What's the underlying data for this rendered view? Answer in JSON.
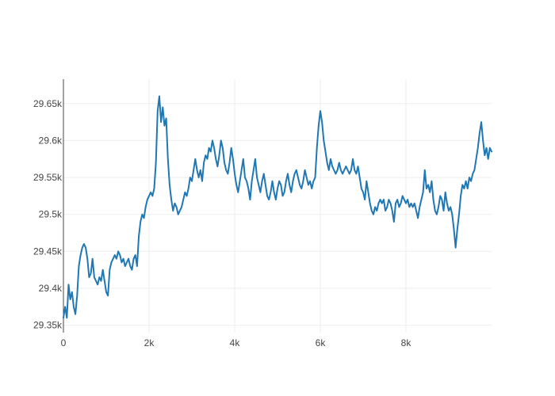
{
  "chart_data": {
    "type": "line",
    "title": "",
    "xlabel": "",
    "ylabel": "",
    "xlim": [
      0,
      10000
    ],
    "ylim": [
      29340,
      29683
    ],
    "grid": true,
    "legend": "none",
    "x_ticks": [
      {
        "value": 0,
        "label": "0"
      },
      {
        "value": 2000,
        "label": "2k"
      },
      {
        "value": 4000,
        "label": "4k"
      },
      {
        "value": 6000,
        "label": "6k"
      },
      {
        "value": 8000,
        "label": "8k"
      }
    ],
    "y_ticks": [
      {
        "value": 29350,
        "label": "29.35k"
      },
      {
        "value": 29400,
        "label": "29.4k"
      },
      {
        "value": 29450,
        "label": "29.45k"
      },
      {
        "value": 29500,
        "label": "29.5k"
      },
      {
        "value": 29550,
        "label": "29.55k"
      },
      {
        "value": 29600,
        "label": "29.6k"
      },
      {
        "value": 29650,
        "label": "29.65k"
      }
    ],
    "series": [
      {
        "color": "#1f77b4",
        "points": [
          [
            0,
            29360
          ],
          [
            40,
            29375
          ],
          [
            80,
            29360
          ],
          [
            120,
            29405
          ],
          [
            160,
            29385
          ],
          [
            200,
            29395
          ],
          [
            240,
            29375
          ],
          [
            280,
            29365
          ],
          [
            320,
            29390
          ],
          [
            360,
            29430
          ],
          [
            400,
            29445
          ],
          [
            440,
            29455
          ],
          [
            480,
            29460
          ],
          [
            520,
            29455
          ],
          [
            560,
            29440
          ],
          [
            600,
            29415
          ],
          [
            640,
            29420
          ],
          [
            680,
            29440
          ],
          [
            720,
            29415
          ],
          [
            760,
            29410
          ],
          [
            800,
            29405
          ],
          [
            840,
            29415
          ],
          [
            880,
            29410
          ],
          [
            920,
            29425
          ],
          [
            960,
            29410
          ],
          [
            1000,
            29395
          ],
          [
            1040,
            29390
          ],
          [
            1080,
            29425
          ],
          [
            1120,
            29435
          ],
          [
            1160,
            29440
          ],
          [
            1200,
            29445
          ],
          [
            1240,
            29440
          ],
          [
            1280,
            29450
          ],
          [
            1320,
            29445
          ],
          [
            1360,
            29435
          ],
          [
            1400,
            29440
          ],
          [
            1440,
            29430
          ],
          [
            1480,
            29435
          ],
          [
            1520,
            29440
          ],
          [
            1560,
            29430
          ],
          [
            1600,
            29425
          ],
          [
            1640,
            29440
          ],
          [
            1680,
            29445
          ],
          [
            1720,
            29430
          ],
          [
            1760,
            29470
          ],
          [
            1800,
            29490
          ],
          [
            1840,
            29500
          ],
          [
            1880,
            29495
          ],
          [
            1920,
            29510
          ],
          [
            1960,
            29520
          ],
          [
            2000,
            29525
          ],
          [
            2040,
            29530
          ],
          [
            2080,
            29525
          ],
          [
            2120,
            29535
          ],
          [
            2160,
            29570
          ],
          [
            2200,
            29640
          ],
          [
            2240,
            29660
          ],
          [
            2280,
            29625
          ],
          [
            2320,
            29645
          ],
          [
            2360,
            29620
          ],
          [
            2400,
            29630
          ],
          [
            2440,
            29575
          ],
          [
            2480,
            29540
          ],
          [
            2520,
            29520
          ],
          [
            2560,
            29505
          ],
          [
            2600,
            29515
          ],
          [
            2640,
            29510
          ],
          [
            2680,
            29500
          ],
          [
            2720,
            29505
          ],
          [
            2760,
            29510
          ],
          [
            2800,
            29520
          ],
          [
            2840,
            29530
          ],
          [
            2880,
            29525
          ],
          [
            2920,
            29535
          ],
          [
            2960,
            29550
          ],
          [
            3000,
            29545
          ],
          [
            3040,
            29560
          ],
          [
            3080,
            29575
          ],
          [
            3120,
            29560
          ],
          [
            3160,
            29550
          ],
          [
            3200,
            29560
          ],
          [
            3240,
            29545
          ],
          [
            3280,
            29570
          ],
          [
            3320,
            29580
          ],
          [
            3360,
            29575
          ],
          [
            3400,
            29590
          ],
          [
            3440,
            29585
          ],
          [
            3480,
            29600
          ],
          [
            3520,
            29590
          ],
          [
            3560,
            29575
          ],
          [
            3600,
            29565
          ],
          [
            3640,
            29580
          ],
          [
            3680,
            29600
          ],
          [
            3720,
            29590
          ],
          [
            3760,
            29570
          ],
          [
            3800,
            29560
          ],
          [
            3840,
            29555
          ],
          [
            3880,
            29570
          ],
          [
            3920,
            29590
          ],
          [
            3960,
            29575
          ],
          [
            4000,
            29555
          ],
          [
            4040,
            29540
          ],
          [
            4080,
            29530
          ],
          [
            4120,
            29545
          ],
          [
            4160,
            29560
          ],
          [
            4200,
            29575
          ],
          [
            4240,
            29550
          ],
          [
            4280,
            29545
          ],
          [
            4320,
            29535
          ],
          [
            4360,
            29520
          ],
          [
            4400,
            29545
          ],
          [
            4440,
            29560
          ],
          [
            4480,
            29575
          ],
          [
            4520,
            29550
          ],
          [
            4560,
            29540
          ],
          [
            4600,
            29530
          ],
          [
            4640,
            29545
          ],
          [
            4680,
            29555
          ],
          [
            4720,
            29540
          ],
          [
            4760,
            29525
          ],
          [
            4800,
            29520
          ],
          [
            4840,
            29530
          ],
          [
            4880,
            29545
          ],
          [
            4920,
            29530
          ],
          [
            4960,
            29520
          ],
          [
            5000,
            29535
          ],
          [
            5040,
            29545
          ],
          [
            5080,
            29540
          ],
          [
            5120,
            29525
          ],
          [
            5160,
            29530
          ],
          [
            5200,
            29545
          ],
          [
            5240,
            29555
          ],
          [
            5280,
            29540
          ],
          [
            5320,
            29530
          ],
          [
            5360,
            29545
          ],
          [
            5400,
            29555
          ],
          [
            5440,
            29560
          ],
          [
            5480,
            29550
          ],
          [
            5520,
            29540
          ],
          [
            5560,
            29535
          ],
          [
            5600,
            29545
          ],
          [
            5640,
            29560
          ],
          [
            5680,
            29550
          ],
          [
            5720,
            29540
          ],
          [
            5760,
            29545
          ],
          [
            5800,
            29535
          ],
          [
            5840,
            29545
          ],
          [
            5880,
            29550
          ],
          [
            5920,
            29590
          ],
          [
            5960,
            29620
          ],
          [
            6000,
            29640
          ],
          [
            6040,
            29625
          ],
          [
            6080,
            29600
          ],
          [
            6120,
            29585
          ],
          [
            6160,
            29570
          ],
          [
            6200,
            29560
          ],
          [
            6240,
            29575
          ],
          [
            6280,
            29565
          ],
          [
            6320,
            29560
          ],
          [
            6360,
            29555
          ],
          [
            6400,
            29560
          ],
          [
            6440,
            29570
          ],
          [
            6480,
            29560
          ],
          [
            6520,
            29555
          ],
          [
            6560,
            29560
          ],
          [
            6600,
            29565
          ],
          [
            6640,
            29560
          ],
          [
            6680,
            29555
          ],
          [
            6720,
            29560
          ],
          [
            6760,
            29575
          ],
          [
            6800,
            29560
          ],
          [
            6840,
            29555
          ],
          [
            6880,
            29565
          ],
          [
            6920,
            29550
          ],
          [
            6960,
            29535
          ],
          [
            7000,
            29530
          ],
          [
            7040,
            29520
          ],
          [
            7080,
            29545
          ],
          [
            7120,
            29530
          ],
          [
            7160,
            29515
          ],
          [
            7200,
            29505
          ],
          [
            7240,
            29500
          ],
          [
            7280,
            29510
          ],
          [
            7320,
            29505
          ],
          [
            7360,
            29515
          ],
          [
            7400,
            29520
          ],
          [
            7440,
            29515
          ],
          [
            7480,
            29520
          ],
          [
            7520,
            29505
          ],
          [
            7560,
            29510
          ],
          [
            7600,
            29520
          ],
          [
            7640,
            29515
          ],
          [
            7680,
            29505
          ],
          [
            7720,
            29490
          ],
          [
            7760,
            29515
          ],
          [
            7800,
            29520
          ],
          [
            7840,
            29510
          ],
          [
            7880,
            29515
          ],
          [
            7920,
            29525
          ],
          [
            7960,
            29520
          ],
          [
            8000,
            29515
          ],
          [
            8040,
            29520
          ],
          [
            8080,
            29510
          ],
          [
            8120,
            29515
          ],
          [
            8160,
            29510
          ],
          [
            8200,
            29515
          ],
          [
            8240,
            29505
          ],
          [
            8280,
            29495
          ],
          [
            8320,
            29510
          ],
          [
            8360,
            29520
          ],
          [
            8400,
            29530
          ],
          [
            8440,
            29560
          ],
          [
            8480,
            29535
          ],
          [
            8520,
            29540
          ],
          [
            8560,
            29530
          ],
          [
            8600,
            29545
          ],
          [
            8640,
            29520
          ],
          [
            8680,
            29505
          ],
          [
            8720,
            29500
          ],
          [
            8760,
            29510
          ],
          [
            8800,
            29525
          ],
          [
            8840,
            29520
          ],
          [
            8880,
            29505
          ],
          [
            8920,
            29530
          ],
          [
            8960,
            29515
          ],
          [
            9000,
            29505
          ],
          [
            9040,
            29510
          ],
          [
            9080,
            29500
          ],
          [
            9120,
            29480
          ],
          [
            9160,
            29455
          ],
          [
            9200,
            29480
          ],
          [
            9240,
            29500
          ],
          [
            9280,
            29525
          ],
          [
            9320,
            29540
          ],
          [
            9360,
            29535
          ],
          [
            9400,
            29545
          ],
          [
            9440,
            29535
          ],
          [
            9480,
            29550
          ],
          [
            9520,
            29545
          ],
          [
            9560,
            29555
          ],
          [
            9600,
            29560
          ],
          [
            9640,
            29575
          ],
          [
            9680,
            29590
          ],
          [
            9720,
            29610
          ],
          [
            9760,
            29625
          ],
          [
            9800,
            29600
          ],
          [
            9840,
            29580
          ],
          [
            9880,
            29590
          ],
          [
            9920,
            29575
          ],
          [
            9960,
            29590
          ],
          [
            10000,
            29585
          ]
        ]
      }
    ]
  }
}
